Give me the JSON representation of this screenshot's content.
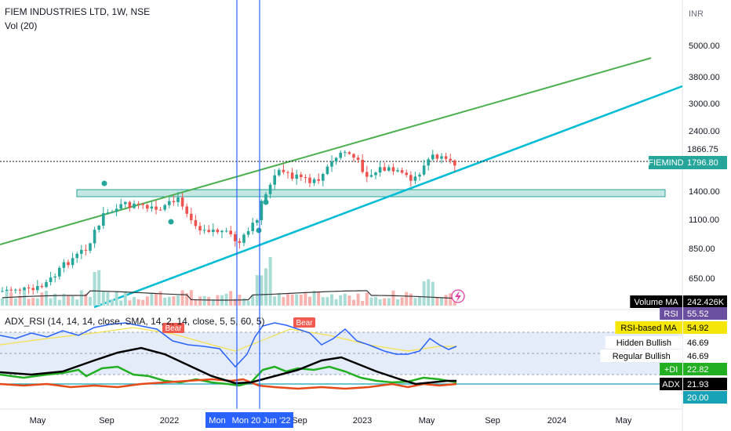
{
  "header": {
    "symbol": "FIEM INDUSTRIES LTD, 1W, NSE",
    "volume_label": "Vol (20)"
  },
  "indicator_title": "ADX_RSI (14, 14, 14, close, SMA, 14, 2, 14, close, 5, 5, 60, 5)",
  "currency": "INR",
  "price_axis_ticks": [
    5000,
    3800,
    3000,
    2400,
    1800,
    1400,
    1100,
    850,
    650
  ],
  "tick_labels": [
    "5000.00",
    "3800.00",
    "3000.00",
    "2400.00",
    "1400.00",
    "1100.00",
    "850.00",
    "650.00"
  ],
  "price_tags": {
    "high": "1866.75",
    "symbol": "FIEMIND",
    "last": "1796.80"
  },
  "indicator_tags": [
    {
      "name": "Volume MA",
      "value": "242.426K",
      "bg": "#000000",
      "fg": "#ffffff"
    },
    {
      "name": "RSI",
      "value": "55.52",
      "bg": "#6b4fa0",
      "fg": "#ffffff"
    },
    {
      "name": "RSI-based MA",
      "value": "54.92",
      "bg": "#f5e60a",
      "fg": "#000000"
    },
    {
      "name": "Hidden Bullish",
      "value": "46.69",
      "bg": "#ffffff",
      "fg": "#000000"
    },
    {
      "name": "Regular Bullish",
      "value": "46.69",
      "bg": "#ffffff",
      "fg": "#000000"
    },
    {
      "name": "+DI",
      "value": "22.82",
      "bg": "#22b022",
      "fg": "#ffffff"
    },
    {
      "name": "ADX",
      "value": "21.93",
      "bg": "#000000",
      "fg": "#ffffff"
    },
    {
      "name": "",
      "value": "20.00",
      "bg": "#17a2b8",
      "fg": "#ffffff"
    }
  ],
  "time_axis": {
    "labels": [
      "May",
      "Sep",
      "2022",
      "Sep",
      "2023",
      "May",
      "Sep",
      "2024",
      "May"
    ],
    "crosshair_labels": [
      "Mon",
      "Mon 20 Jun '22"
    ]
  },
  "annotations": [
    "Bear",
    "Bear"
  ],
  "colors": {
    "up": "#26a69a",
    "down": "#ef5350",
    "green_trend": "#4caf50",
    "cyan_trend": "#00bcd4",
    "zone": "#b2dfdb",
    "crosshair": "#2962ff",
    "rsi": "#2962ff",
    "rsi_ma": "#ffeb3b",
    "adx": "#000000",
    "plus_di": "#22b022",
    "minus_di": "#e64a19",
    "band": "#dbe4f7",
    "vol_ma": "#333333"
  },
  "chart_data": {
    "type": "candlestick",
    "symbol": "FIEMIND",
    "interval": "1W",
    "x_dates": [
      "2021-05",
      "2021-09",
      "2022-01",
      "2022-06",
      "2022-09",
      "2023-01",
      "2023-05",
      "2023-08"
    ],
    "close_approx": [
      600,
      1250,
      1300,
      850,
      1500,
      1700,
      1820,
      1797
    ],
    "last_close": 1796.8,
    "high_line": 1866.75,
    "volume_ma": "242.426K",
    "rsi": 55.52,
    "rsi_ma": 54.92,
    "plus_di": 22.82,
    "adx": 21.93,
    "level": 20.0
  }
}
